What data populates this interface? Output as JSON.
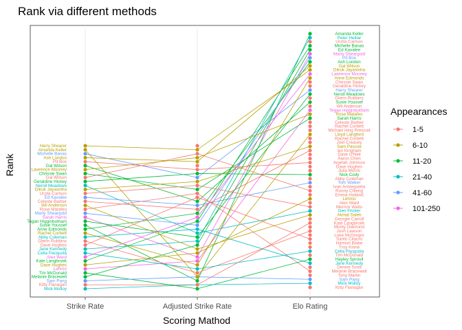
{
  "chart_data": {
    "type": "line",
    "title": "Rank via different methods",
    "xlabel": "Scoring Mathod",
    "ylabel": "Rank",
    "categories": [
      "Strike Rate",
      "Adjusted Strike Rate",
      "Elo Rating"
    ],
    "grid": true,
    "legend": {
      "title": "Appearances",
      "position": "right",
      "items": [
        {
          "label": "1-5",
          "color": "#F8766D"
        },
        {
          "label": "6-10",
          "color": "#B79F00"
        },
        {
          "label": "11-20",
          "color": "#00BA38"
        },
        {
          "label": "21-40",
          "color": "#00BFC4"
        },
        {
          "label": "41-60",
          "color": "#619CFF"
        },
        {
          "label": "101-250",
          "color": "#F564E3"
        }
      ]
    },
    "left_labels": [
      "Harry Shearer",
      "Amanda Keller",
      "Michelle Banas",
      "Ash London",
      "Pit Box",
      "Gal Wilson",
      "Lawrence Mooney",
      "Chrissie Swan",
      "Gal Wilson",
      "Geraldine Hickey",
      "Neroli Meadows",
      "Dilruk Jayasinha",
      "Urzila Carlson",
      "Ed Kavalee",
      "Celeste Barber",
      "Wil Anderson",
      "Rose Matafeo",
      "Marty Sheargold",
      "Sarah Harris",
      "Tegan Higginbotham",
      "Susie Youssef",
      "Anne Edmonds",
      "Rachel Corbett",
      "Abby Coleman",
      "Glenn Robbins",
      "Dave Hughes",
      "Jane Kennedy",
      "Celia Pacquola",
      "Alex Ward",
      "Kate Langbroek",
      "Dave Hughes",
      "Lehmo",
      "Tim McDonald",
      "Melanie Bracewell",
      "Sam Pang",
      "Kitty Flanagan",
      "Mick Molloy"
    ],
    "right_labels": [
      "Amanda Keller",
      "Peter Helliar",
      "Urzila Carlson",
      "Michelle Banas",
      "Ed Kavalee",
      "Marty Sheargold",
      "Pit Box",
      "Ash London",
      "Gal Wilson",
      "Dilruk Jayasinha",
      "Lawrence Mooney",
      "Anne Edmonds",
      "Chrissie Swan",
      "Geraldine Hickey",
      "Harry Shearer",
      "Neroli Meadows",
      "Glenn Robbins",
      "Susie Youssef",
      "Wil Anderson",
      "Tegan Higginbotham",
      "Rose Matafeo",
      "Sarah Harris",
      "Celeste Barber",
      "Rachel Corbett",
      "Michael Hing Prescott",
      "Lloyd Langford",
      "Rachel Corbett",
      "Joel Creasey",
      "Sam Pascoe",
      "Ian Kingham",
      "Dave O'Neil",
      "Aaron Chen",
      "Anjelah Johnson",
      "Dave Hughes",
      "Julia Morris",
      "Nick Cody",
      "Abby Coleman",
      "Tom Walker",
      "Ivan Aristeguieta",
      "Ronny Chieng",
      "Emma Holland",
      "Lehmo",
      "Alex Ward",
      "Merrick Watts",
      "Gen Fricker",
      "Akmal Saleh",
      "Georgie Carroll",
      "Kate Langbroek",
      "Monty Diamond",
      "Josh Lawson",
      "Luke McGregor",
      "Santo Cilauro",
      "Hamish Blake",
      "Troy Kinne",
      "Celia Pacquola",
      "Tim McDonald",
      "Hayley Sproull",
      "Jane Kennedy",
      "Denise Scott",
      "Melanie Bracewell",
      "Tony Martin",
      "Sam Pang",
      "Mick Molloy",
      "Kitty Flanagan"
    ],
    "series": [
      {
        "group": "101-250",
        "ranks": [
          19,
          29,
          6
        ]
      },
      {
        "group": "11-20",
        "ranks": [
          8,
          12,
          22
        ]
      },
      {
        "group": "41-60",
        "ranks": [
          3,
          9,
          15
        ]
      },
      {
        "group": "6-10",
        "ranks": [
          1,
          2,
          10
        ]
      },
      {
        "group": "1-5",
        "ranks": [
          5,
          7,
          33
        ]
      },
      {
        "group": "21-40",
        "ranks": [
          11,
          23,
          45
        ]
      },
      {
        "group": "11-20",
        "ranks": [
          21,
          35,
          1
        ]
      },
      {
        "group": "1-5",
        "ranks": [
          25,
          33,
          50
        ]
      },
      {
        "group": "11-20",
        "ranks": [
          30,
          20,
          4
        ]
      },
      {
        "group": "6-10",
        "ranks": [
          2,
          34,
          26
        ]
      },
      {
        "group": "41-60",
        "ranks": [
          14,
          16,
          38
        ]
      },
      {
        "group": "1-5",
        "ranks": [
          17,
          13,
          60
        ]
      },
      {
        "group": "21-40",
        "ranks": [
          27,
          25,
          2
        ]
      },
      {
        "group": "11-20",
        "ranks": [
          6,
          15,
          18
        ]
      },
      {
        "group": "6-10",
        "ranks": [
          4,
          5,
          9
        ]
      },
      {
        "group": "101-250",
        "ranks": [
          32,
          30,
          20
        ]
      },
      {
        "group": "1-5",
        "ranks": [
          9,
          3,
          40
        ]
      },
      {
        "group": "11-20",
        "ranks": [
          22,
          18,
          8
        ]
      },
      {
        "group": "6-10",
        "ranks": [
          12,
          10,
          29
        ]
      },
      {
        "group": "21-40",
        "ranks": [
          28,
          32,
          55
        ]
      },
      {
        "group": "1-5",
        "ranks": [
          13,
          11,
          44
        ]
      },
      {
        "group": "11-20",
        "ranks": [
          34,
          26,
          5
        ]
      },
      {
        "group": "6-10",
        "ranks": [
          23,
          31,
          12
        ]
      },
      {
        "group": "41-60",
        "ranks": [
          18,
          21,
          7
        ]
      },
      {
        "group": "1-5",
        "ranks": [
          36,
          36,
          48
        ]
      },
      {
        "group": "11-20",
        "ranks": [
          10,
          8,
          36
        ]
      },
      {
        "group": "6-10",
        "ranks": [
          31,
          28,
          42
        ]
      },
      {
        "group": "21-40",
        "ranks": [
          24,
          22,
          58
        ]
      },
      {
        "group": "1-5",
        "ranks": [
          26,
          14,
          52
        ]
      },
      {
        "group": "11-20",
        "ranks": [
          33,
          37,
          57
        ]
      },
      {
        "group": "6-10",
        "ranks": [
          7,
          4,
          21
        ]
      },
      {
        "group": "41-60",
        "ranks": [
          35,
          34,
          62
        ]
      },
      {
        "group": "1-5",
        "ranks": [
          15,
          17,
          30
        ]
      },
      {
        "group": "11-20",
        "ranks": [
          20,
          24,
          16
        ]
      },
      {
        "group": "101-250",
        "ranks": [
          29,
          19,
          11
        ]
      },
      {
        "group": "6-10",
        "ranks": [
          16,
          27,
          46
        ]
      },
      {
        "group": "21-40",
        "ranks": [
          37,
          36,
          63
        ]
      }
    ]
  }
}
